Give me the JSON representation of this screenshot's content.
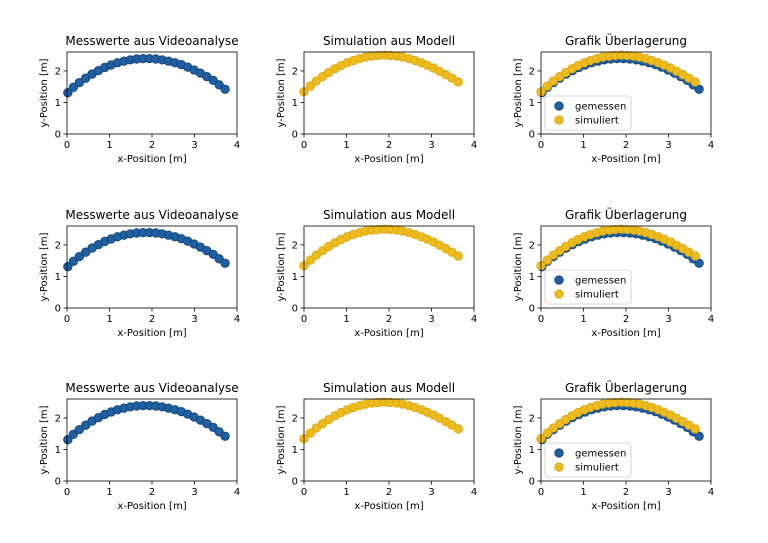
{
  "colors": {
    "measured": "#1f5fa3",
    "measured_edge": "#154470",
    "simulated": "#eebb1e",
    "simulated_edge": "#d9a912"
  },
  "legend_labels": [
    "gemessen",
    "simuliert"
  ],
  "chart_data": [
    {
      "type": "scatter",
      "title": "Messwerte aus Videoanalyse",
      "xlabel": "x-Position [m]",
      "ylabel": "y-Position [m]",
      "xlim": [
        0,
        4
      ],
      "ylim": [
        0,
        2.6
      ],
      "xticks": [
        0,
        1,
        2,
        3,
        4
      ],
      "yticks": [
        0,
        1,
        2
      ],
      "series": [
        {
          "name": "gemessen",
          "x": [
            0.02,
            0.15,
            0.29,
            0.44,
            0.59,
            0.74,
            0.89,
            1.04,
            1.19,
            1.34,
            1.49,
            1.64,
            1.79,
            1.94,
            2.09,
            2.24,
            2.39,
            2.54,
            2.69,
            2.84,
            2.99,
            3.14,
            3.29,
            3.44,
            3.58,
            3.72
          ],
          "y": [
            1.31,
            1.48,
            1.63,
            1.77,
            1.9,
            2.01,
            2.11,
            2.19,
            2.26,
            2.31,
            2.35,
            2.38,
            2.39,
            2.39,
            2.38,
            2.35,
            2.31,
            2.26,
            2.2,
            2.12,
            2.03,
            1.93,
            1.82,
            1.7,
            1.56,
            1.42
          ]
        }
      ]
    },
    {
      "type": "scatter",
      "title": "Simulation aus Modell",
      "xlabel": "x-Position [m]",
      "ylabel": "y-Position [m]",
      "xlim": [
        0,
        4
      ],
      "ylim": [
        0,
        2.6
      ],
      "xticks": [
        0,
        1,
        2,
        3,
        4
      ],
      "yticks": [
        0,
        1,
        2
      ],
      "series": [
        {
          "name": "simuliert",
          "x": [
            0.0,
            0.15,
            0.29,
            0.44,
            0.58,
            0.73,
            0.87,
            1.02,
            1.16,
            1.31,
            1.45,
            1.6,
            1.74,
            1.89,
            2.03,
            2.18,
            2.32,
            2.47,
            2.61,
            2.76,
            2.9,
            3.05,
            3.19,
            3.34,
            3.48,
            3.63
          ],
          "y": [
            1.34,
            1.52,
            1.68,
            1.82,
            1.95,
            2.07,
            2.17,
            2.26,
            2.33,
            2.39,
            2.44,
            2.47,
            2.49,
            2.5,
            2.49,
            2.47,
            2.44,
            2.39,
            2.33,
            2.26,
            2.18,
            2.09,
            1.99,
            1.88,
            1.77,
            1.65
          ]
        }
      ]
    },
    {
      "type": "scatter",
      "title": "Grafik Überlagerung",
      "xlabel": "x-Position [m]",
      "ylabel": "y-Position [m]",
      "xlim": [
        0,
        4
      ],
      "ylim": [
        0,
        2.6
      ],
      "xticks": [
        0,
        1,
        2,
        3,
        4
      ],
      "yticks": [
        0,
        1,
        2
      ],
      "legend": "lower-left",
      "series": [
        {
          "name": "gemessen",
          "x": [
            0.02,
            0.15,
            0.29,
            0.44,
            0.59,
            0.74,
            0.89,
            1.04,
            1.19,
            1.34,
            1.49,
            1.64,
            1.79,
            1.94,
            2.09,
            2.24,
            2.39,
            2.54,
            2.69,
            2.84,
            2.99,
            3.14,
            3.29,
            3.44,
            3.58,
            3.72
          ],
          "y": [
            1.31,
            1.48,
            1.63,
            1.77,
            1.9,
            2.01,
            2.11,
            2.19,
            2.26,
            2.31,
            2.35,
            2.38,
            2.39,
            2.39,
            2.38,
            2.35,
            2.31,
            2.26,
            2.2,
            2.12,
            2.03,
            1.93,
            1.82,
            1.7,
            1.56,
            1.42
          ]
        },
        {
          "name": "simuliert",
          "x": [
            0.0,
            0.15,
            0.29,
            0.44,
            0.58,
            0.73,
            0.87,
            1.02,
            1.16,
            1.31,
            1.45,
            1.6,
            1.74,
            1.89,
            2.03,
            2.18,
            2.32,
            2.47,
            2.61,
            2.76,
            2.9,
            3.05,
            3.19,
            3.34,
            3.48,
            3.63
          ],
          "y": [
            1.34,
            1.52,
            1.68,
            1.82,
            1.95,
            2.07,
            2.17,
            2.26,
            2.33,
            2.39,
            2.44,
            2.47,
            2.49,
            2.5,
            2.49,
            2.47,
            2.44,
            2.39,
            2.33,
            2.26,
            2.18,
            2.09,
            1.99,
            1.88,
            1.77,
            1.65
          ]
        }
      ]
    },
    {
      "type": "scatter",
      "title": "Messwerte aus Videoanalyse",
      "xlabel": "x-Position [m]",
      "ylabel": "y-Position [m]",
      "xlim": [
        0,
        4
      ],
      "ylim": [
        0,
        2.6
      ],
      "xticks": [
        0,
        1,
        2,
        3,
        4
      ],
      "yticks": [
        0,
        1,
        2
      ],
      "series": [
        {
          "name": "gemessen",
          "x": [
            0.02,
            0.15,
            0.29,
            0.44,
            0.59,
            0.74,
            0.89,
            1.04,
            1.19,
            1.34,
            1.49,
            1.64,
            1.79,
            1.94,
            2.09,
            2.24,
            2.39,
            2.54,
            2.69,
            2.84,
            2.99,
            3.14,
            3.29,
            3.44,
            3.58,
            3.72
          ],
          "y": [
            1.31,
            1.48,
            1.63,
            1.77,
            1.9,
            2.01,
            2.11,
            2.19,
            2.26,
            2.31,
            2.35,
            2.38,
            2.39,
            2.39,
            2.38,
            2.35,
            2.31,
            2.26,
            2.2,
            2.12,
            2.03,
            1.93,
            1.82,
            1.7,
            1.56,
            1.42
          ]
        }
      ]
    },
    {
      "type": "scatter",
      "title": "Simulation aus Modell",
      "xlabel": "x-Position [m]",
      "ylabel": "y-Position [m]",
      "xlim": [
        0,
        4
      ],
      "ylim": [
        0,
        2.6
      ],
      "xticks": [
        0,
        1,
        2,
        3,
        4
      ],
      "yticks": [
        0,
        1,
        2
      ],
      "series": [
        {
          "name": "simuliert",
          "x": [
            0.0,
            0.15,
            0.29,
            0.44,
            0.58,
            0.73,
            0.87,
            1.02,
            1.16,
            1.31,
            1.45,
            1.6,
            1.74,
            1.89,
            2.03,
            2.18,
            2.32,
            2.47,
            2.61,
            2.76,
            2.9,
            3.05,
            3.19,
            3.34,
            3.48,
            3.63
          ],
          "y": [
            1.34,
            1.52,
            1.68,
            1.82,
            1.95,
            2.07,
            2.17,
            2.26,
            2.33,
            2.39,
            2.44,
            2.47,
            2.49,
            2.5,
            2.49,
            2.47,
            2.44,
            2.39,
            2.33,
            2.26,
            2.18,
            2.09,
            1.99,
            1.88,
            1.77,
            1.65
          ]
        }
      ]
    },
    {
      "type": "scatter",
      "title": "Grafik Überlagerung",
      "xlabel": "x-Position [m]",
      "ylabel": "y-Position [m]",
      "xlim": [
        0,
        4
      ],
      "ylim": [
        0,
        2.6
      ],
      "xticks": [
        0,
        1,
        2,
        3,
        4
      ],
      "yticks": [
        0,
        1,
        2
      ],
      "legend": "lower-left",
      "series": [
        {
          "name": "gemessen",
          "x": [
            0.02,
            0.15,
            0.29,
            0.44,
            0.59,
            0.74,
            0.89,
            1.04,
            1.19,
            1.34,
            1.49,
            1.64,
            1.79,
            1.94,
            2.09,
            2.24,
            2.39,
            2.54,
            2.69,
            2.84,
            2.99,
            3.14,
            3.29,
            3.44,
            3.58,
            3.72
          ],
          "y": [
            1.31,
            1.48,
            1.63,
            1.77,
            1.9,
            2.01,
            2.11,
            2.19,
            2.26,
            2.31,
            2.35,
            2.38,
            2.39,
            2.39,
            2.38,
            2.35,
            2.31,
            2.26,
            2.2,
            2.12,
            2.03,
            1.93,
            1.82,
            1.7,
            1.56,
            1.42
          ]
        },
        {
          "name": "simuliert",
          "x": [
            0.0,
            0.15,
            0.29,
            0.44,
            0.58,
            0.73,
            0.87,
            1.02,
            1.16,
            1.31,
            1.45,
            1.6,
            1.74,
            1.89,
            2.03,
            2.18,
            2.32,
            2.47,
            2.61,
            2.76,
            2.9,
            3.05,
            3.19,
            3.34,
            3.48,
            3.63
          ],
          "y": [
            1.34,
            1.52,
            1.68,
            1.82,
            1.95,
            2.07,
            2.17,
            2.26,
            2.33,
            2.39,
            2.44,
            2.47,
            2.49,
            2.5,
            2.49,
            2.47,
            2.44,
            2.39,
            2.33,
            2.26,
            2.18,
            2.09,
            1.99,
            1.88,
            1.77,
            1.65
          ]
        }
      ]
    },
    {
      "type": "scatter",
      "title": "Messwerte aus Videoanalyse",
      "xlabel": "x-Position [m]",
      "ylabel": "y-Position [m]",
      "xlim": [
        0,
        4
      ],
      "ylim": [
        0,
        2.6
      ],
      "xticks": [
        0,
        1,
        2,
        3,
        4
      ],
      "yticks": [
        0,
        1,
        2
      ],
      "series": [
        {
          "name": "gemessen",
          "x": [
            0.02,
            0.15,
            0.29,
            0.44,
            0.59,
            0.74,
            0.89,
            1.04,
            1.19,
            1.34,
            1.49,
            1.64,
            1.79,
            1.94,
            2.09,
            2.24,
            2.39,
            2.54,
            2.69,
            2.84,
            2.99,
            3.14,
            3.29,
            3.44,
            3.58,
            3.72
          ],
          "y": [
            1.31,
            1.48,
            1.63,
            1.77,
            1.9,
            2.01,
            2.11,
            2.19,
            2.26,
            2.31,
            2.35,
            2.38,
            2.39,
            2.39,
            2.38,
            2.35,
            2.31,
            2.26,
            2.2,
            2.12,
            2.03,
            1.93,
            1.82,
            1.7,
            1.56,
            1.42
          ]
        }
      ]
    },
    {
      "type": "scatter",
      "title": "Simulation aus Modell",
      "xlabel": "x-Position [m]",
      "ylabel": "y-Position [m]",
      "xlim": [
        0,
        4
      ],
      "ylim": [
        0,
        2.6
      ],
      "xticks": [
        0,
        1,
        2,
        3,
        4
      ],
      "yticks": [
        0,
        1,
        2
      ],
      "series": [
        {
          "name": "simuliert",
          "x": [
            0.0,
            0.15,
            0.29,
            0.44,
            0.58,
            0.73,
            0.87,
            1.02,
            1.16,
            1.31,
            1.45,
            1.6,
            1.74,
            1.89,
            2.03,
            2.18,
            2.32,
            2.47,
            2.61,
            2.76,
            2.9,
            3.05,
            3.19,
            3.34,
            3.48,
            3.63
          ],
          "y": [
            1.34,
            1.52,
            1.68,
            1.82,
            1.95,
            2.07,
            2.17,
            2.26,
            2.33,
            2.39,
            2.44,
            2.47,
            2.49,
            2.5,
            2.49,
            2.47,
            2.44,
            2.39,
            2.33,
            2.26,
            2.18,
            2.09,
            1.99,
            1.88,
            1.77,
            1.65
          ]
        }
      ]
    },
    {
      "type": "scatter",
      "title": "Grafik Überlagerung",
      "xlabel": "x-Position [m]",
      "ylabel": "y-Position [m]",
      "xlim": [
        0,
        4
      ],
      "ylim": [
        0,
        2.6
      ],
      "xticks": [
        0,
        1,
        2,
        3,
        4
      ],
      "yticks": [
        0,
        1,
        2
      ],
      "legend": "lower-left",
      "series": [
        {
          "name": "gemessen",
          "x": [
            0.02,
            0.15,
            0.29,
            0.44,
            0.59,
            0.74,
            0.89,
            1.04,
            1.19,
            1.34,
            1.49,
            1.64,
            1.79,
            1.94,
            2.09,
            2.24,
            2.39,
            2.54,
            2.69,
            2.84,
            2.99,
            3.14,
            3.29,
            3.44,
            3.58,
            3.72
          ],
          "y": [
            1.31,
            1.48,
            1.63,
            1.77,
            1.9,
            2.01,
            2.11,
            2.19,
            2.26,
            2.31,
            2.35,
            2.38,
            2.39,
            2.39,
            2.38,
            2.35,
            2.31,
            2.26,
            2.2,
            2.12,
            2.03,
            1.93,
            1.82,
            1.7,
            1.56,
            1.42
          ]
        },
        {
          "name": "simuliert",
          "x": [
            0.0,
            0.15,
            0.29,
            0.44,
            0.58,
            0.73,
            0.87,
            1.02,
            1.16,
            1.31,
            1.45,
            1.6,
            1.74,
            1.89,
            2.03,
            2.18,
            2.32,
            2.47,
            2.61,
            2.76,
            2.9,
            3.05,
            3.19,
            3.34,
            3.48,
            3.63
          ],
          "y": [
            1.34,
            1.52,
            1.68,
            1.82,
            1.95,
            2.07,
            2.17,
            2.26,
            2.33,
            2.39,
            2.44,
            2.47,
            2.49,
            2.5,
            2.49,
            2.47,
            2.44,
            2.39,
            2.33,
            2.26,
            2.18,
            2.09,
            1.99,
            1.88,
            1.77,
            1.65
          ]
        }
      ]
    }
  ]
}
